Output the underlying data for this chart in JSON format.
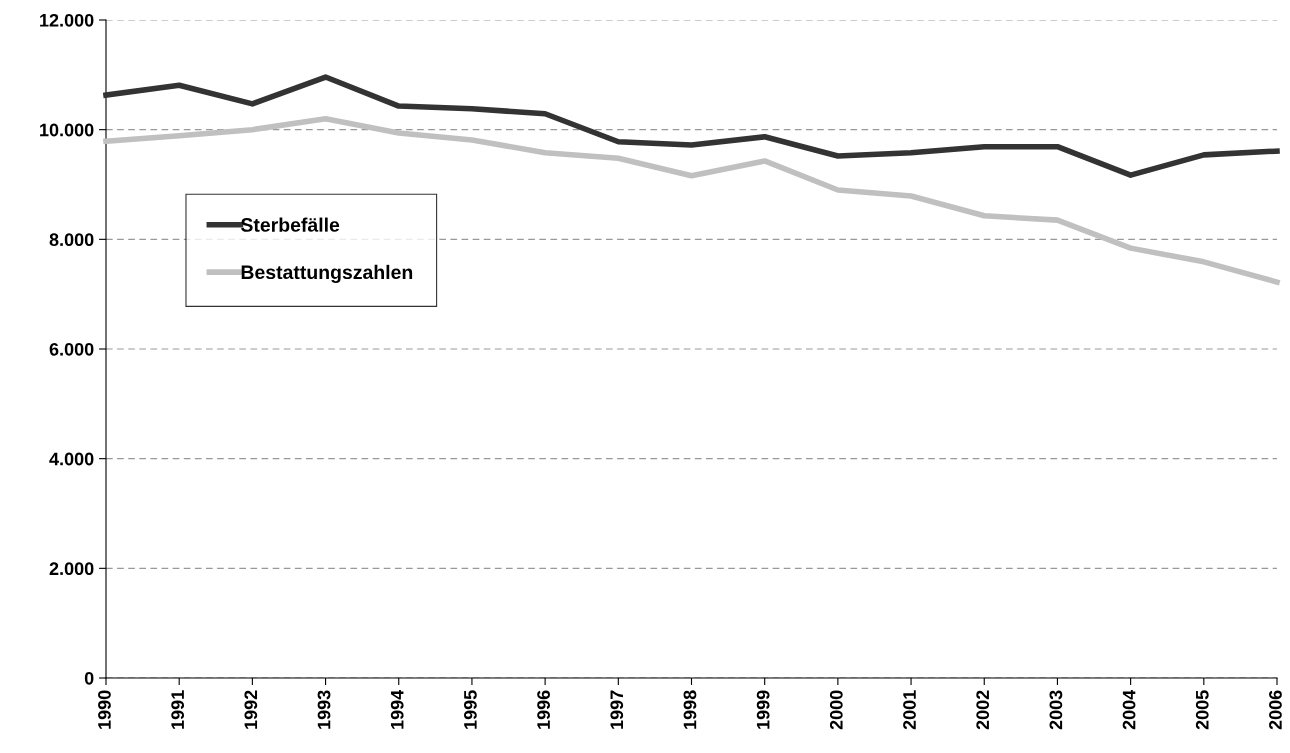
{
  "chart_data": {
    "type": "line",
    "categories": [
      "1990",
      "1991",
      "1992",
      "1993",
      "1994",
      "1995",
      "1996",
      "1997",
      "1998",
      "1999",
      "2000",
      "2001",
      "2002",
      "2003",
      "2004",
      "2005",
      "2006"
    ],
    "series": [
      {
        "name": "Sterbefälle",
        "color": "#333333",
        "values": [
          10630,
          10810,
          10470,
          10960,
          10430,
          10380,
          10290,
          9780,
          9720,
          9870,
          9520,
          9580,
          9690,
          9690,
          9170,
          9540,
          9610
        ]
      },
      {
        "name": "Bestattungszahlen",
        "color": "#c0c0c0",
        "values": [
          9790,
          9890,
          10000,
          10200,
          9940,
          9810,
          9580,
          9480,
          9160,
          9430,
          8900,
          8790,
          8430,
          8350,
          7840,
          7590,
          7220
        ]
      }
    ],
    "ylim": [
      0,
      12000
    ],
    "yticks": [
      {
        "value": 0,
        "label": "0"
      },
      {
        "value": 2000,
        "label": "2.000"
      },
      {
        "value": 4000,
        "label": "4.000"
      },
      {
        "value": 6000,
        "label": "6.000"
      },
      {
        "value": 8000,
        "label": "8.000"
      },
      {
        "value": 10000,
        "label": "10.000"
      },
      {
        "value": 12000,
        "label": "12.000"
      }
    ],
    "grid": "y",
    "legend": "left",
    "marker": "none",
    "line_style": "solid"
  }
}
